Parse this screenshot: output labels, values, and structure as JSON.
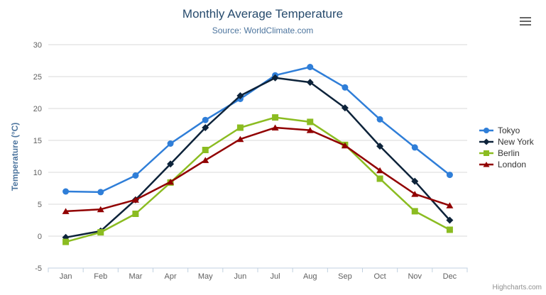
{
  "credit": "Highcharts.com",
  "icons": {
    "context_menu": "hamburger-menu-icon"
  },
  "colors": {
    "title": "#274b6d",
    "subtitle": "#4d759e",
    "axis_title": "#4d759e",
    "axis_labels": "#606060",
    "gridline": "#d8d8d8",
    "axis_line": "#c0d0e0",
    "legend_text": "#333333",
    "credit": "#909090",
    "menu_icon": "#666666"
  },
  "chart_data": {
    "type": "line",
    "title": "Monthly Average Temperature",
    "subtitle": "Source: WorldClimate.com",
    "xlabel": "",
    "ylabel": "Temperature (°C)",
    "ylim": [
      -5,
      30
    ],
    "ytick_interval": 5,
    "grid": true,
    "legend_position": "right",
    "categories": [
      "Jan",
      "Feb",
      "Mar",
      "Apr",
      "May",
      "Jun",
      "Jul",
      "Aug",
      "Sep",
      "Oct",
      "Nov",
      "Dec"
    ],
    "series": [
      {
        "name": "Tokyo",
        "color": "#2f7ed8",
        "marker": "circle",
        "values": [
          7.0,
          6.9,
          9.5,
          14.5,
          18.2,
          21.5,
          25.2,
          26.5,
          23.3,
          18.3,
          13.9,
          9.6
        ]
      },
      {
        "name": "New York",
        "color": "#0d233a",
        "marker": "diamond",
        "values": [
          -0.2,
          0.8,
          5.7,
          11.3,
          17.0,
          22.0,
          24.8,
          24.1,
          20.1,
          14.1,
          8.6,
          2.5
        ]
      },
      {
        "name": "Berlin",
        "color": "#8bbc21",
        "marker": "square",
        "values": [
          -0.9,
          0.6,
          3.5,
          8.4,
          13.5,
          17.0,
          18.6,
          17.9,
          14.3,
          9.0,
          3.9,
          1.0
        ]
      },
      {
        "name": "London",
        "color": "#910000",
        "marker": "triangle",
        "values": [
          3.9,
          4.2,
          5.7,
          8.5,
          11.9,
          15.2,
          17.0,
          16.6,
          14.2,
          10.3,
          6.6,
          4.8
        ]
      }
    ]
  }
}
